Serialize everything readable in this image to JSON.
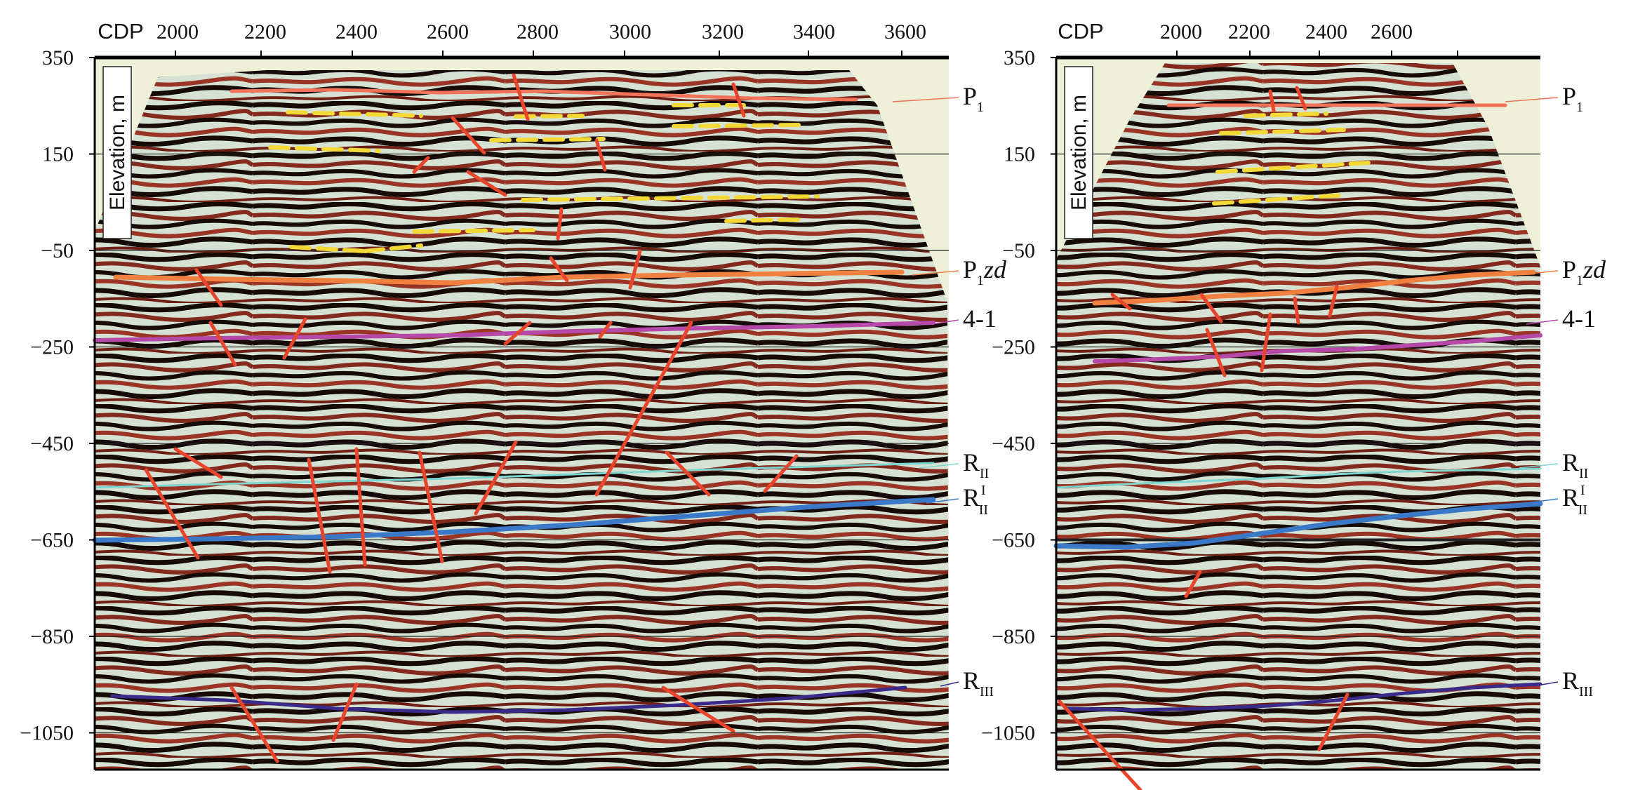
{
  "figure": {
    "panels": [
      {
        "id": "left",
        "axis_title": "CDP",
        "cdp_ticks": [
          "2000",
          "2200",
          "2400",
          "2600",
          "2800",
          "3000",
          "3200",
          "3400",
          "3600"
        ],
        "elevation_ticks": [
          "350",
          "150",
          "-50",
          "-250",
          "-450",
          "-650",
          "-850",
          "-1050"
        ],
        "y_axis_label": "Elevation, m",
        "horizons": [
          {
            "main": "P",
            "sub": "1",
            "suffix": "",
            "sup": "",
            "color": "#f0735a"
          },
          {
            "main": "P",
            "sub": "1",
            "suffix": "zd",
            "sup": "",
            "color": "#f08040"
          },
          {
            "main": "4-1",
            "sub": "",
            "suffix": "",
            "sup": "",
            "color": "#b548a8"
          },
          {
            "main": "R",
            "sub": "II",
            "suffix": "",
            "sup": "",
            "color": "#7ed6d0"
          },
          {
            "main": "R",
            "sub": "II",
            "suffix": "",
            "sup": "I",
            "color": "#3a78c8"
          },
          {
            "main": "R",
            "sub": "III",
            "suffix": "",
            "sup": "",
            "color": "#3a2a8a"
          }
        ]
      },
      {
        "id": "right",
        "axis_title": "CDP",
        "cdp_ticks": [
          "2000",
          "2200",
          "2400",
          "2600"
        ],
        "elevation_ticks": [
          "350",
          "150",
          "-50",
          "-250",
          "-450",
          "-650",
          "-850",
          "-1050"
        ],
        "y_axis_label": "Elevation, m",
        "horizons": [
          {
            "main": "P",
            "sub": "1",
            "suffix": "",
            "sup": "",
            "color": "#f0735a"
          },
          {
            "main": "P",
            "sub": "1",
            "suffix": "zd",
            "sup": "",
            "color": "#f08040"
          },
          {
            "main": "4-1",
            "sub": "",
            "suffix": "",
            "sup": "",
            "color": "#b548a8"
          },
          {
            "main": "R",
            "sub": "II",
            "suffix": "",
            "sup": "",
            "color": "#7ed6d0"
          },
          {
            "main": "R",
            "sub": "II",
            "suffix": "",
            "sup": "I",
            "color": "#3a78c8"
          },
          {
            "main": "R",
            "sub": "III",
            "suffix": "",
            "sup": "",
            "color": "#3a2a8a"
          }
        ]
      }
    ],
    "colors": {
      "background_fill": "#eef0d8",
      "seismic_dark": "#1a0d0a",
      "seismic_red": "#8a2e22",
      "seismic_light": "#d8e4d6",
      "fault_line": "#e8452c",
      "dashed_marker": "#f2d936",
      "frame": "#000000"
    }
  }
}
